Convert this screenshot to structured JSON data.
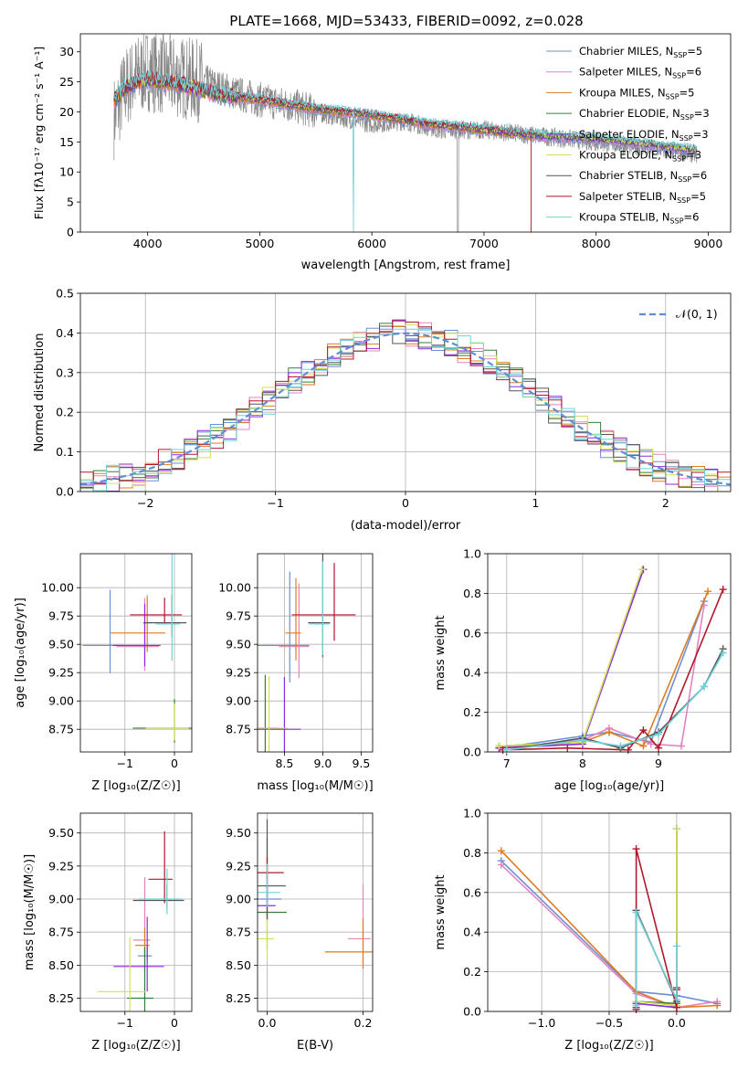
{
  "title": "PLATE=1668, MJD=53433, FIBERID=0092, z=0.028",
  "series_styles": [
    {
      "name": "Chabrier MILES, N_SSP=5",
      "color": "#6a8fd8"
    },
    {
      "name": "Salpeter MILES, N_SSP=6",
      "color": "#e384c0"
    },
    {
      "name": "Kroupa MILES, N_SSP=5",
      "color": "#df7c1e"
    },
    {
      "name": "Chabrier ELODIE, N_SSP=3",
      "color": "#3a7d3a"
    },
    {
      "name": "Salpeter ELODIE, N_SSP=3",
      "color": "#8a2be2"
    },
    {
      "name": "Kroupa ELODIE, N_SSP=3",
      "color": "#d4e157"
    },
    {
      "name": "Chabrier STELIB, N_SSP=6",
      "color": "#555555"
    },
    {
      "name": "Salpeter STELIB, N_SSP=5",
      "color": "#b2182b"
    },
    {
      "name": "Kroupa STELIB, N_SSP=6",
      "color": "#6fd0d8"
    }
  ],
  "chart_data": [
    {
      "id": "spectrum",
      "type": "line",
      "xlabel": "wavelength [Angstrom, rest frame]",
      "ylabel": "Flux [f_λ 10^-17 erg cm^-2 s^-1 A^-1]",
      "xlim": [
        3400,
        9200
      ],
      "ylim": [
        0,
        33
      ],
      "xticks": [
        4000,
        5000,
        6000,
        7000,
        8000,
        9000
      ],
      "yticks": [
        0,
        5,
        10,
        15,
        20,
        25,
        30
      ],
      "grid": false,
      "legend": "top-right",
      "legend_entries": [
        "Chabrier MILES, N_SSP=5",
        "Salpeter MILES, N_SSP=6",
        "Kroupa MILES, N_SSP=5",
        "Chabrier ELODIE, N_SSP=3",
        "Salpeter ELODIE, N_SSP=3",
        "Kroupa ELODIE, N_SSP=3",
        "Chabrier STELIB, N_SSP=6",
        "Salpeter STELIB, N_SSP=5",
        "Kroupa STELIB, N_SSP=6"
      ],
      "data_x": [
        3700,
        3800,
        3900,
        4000,
        4200,
        4500,
        4800,
        5000,
        5300,
        5600,
        6000,
        6300,
        6600,
        7000,
        7500,
        8000,
        8500,
        8900
      ],
      "data_y": [
        19,
        24,
        26,
        27,
        26,
        25,
        23,
        22,
        21,
        19.5,
        18,
        18.5,
        17,
        17,
        16,
        15,
        14,
        13
      ],
      "model_x": [
        3700,
        3800,
        4000,
        4300,
        4600,
        5000,
        5500,
        6000,
        6500,
        7000,
        7500,
        8000,
        8500,
        8900
      ],
      "model_y": [
        22,
        24,
        25.5,
        24.5,
        23,
        22,
        20.5,
        19.5,
        18,
        17,
        16,
        15.5,
        14.5,
        13.5
      ]
    },
    {
      "id": "residuals",
      "type": "line",
      "xlabel": "(data-model)/error",
      "ylabel": "Normed distribution",
      "xlim": [
        -2.5,
        2.5
      ],
      "ylim": [
        0,
        0.5
      ],
      "xticks": [
        -2,
        -1,
        0,
        1,
        2
      ],
      "yticks": [
        0.0,
        0.1,
        0.2,
        0.3,
        0.4,
        0.5
      ],
      "grid": true,
      "legend": "top-right",
      "legend_entries": [
        "𝒩(0, 1)"
      ],
      "reference_curve": "normal(0,1)"
    },
    {
      "id": "age-vs-Z",
      "type": "scatter",
      "xlabel": "Z [log10(Z/Z☉)]",
      "ylabel": "age [log10(age/yr)]",
      "xlim": [
        -1.9,
        0.35
      ],
      "ylim": [
        8.55,
        10.3
      ],
      "xticks": [
        -1,
        0
      ],
      "yticks": [
        8.75,
        9.0,
        9.25,
        9.5,
        9.75,
        10.0
      ],
      "grid": true,
      "points": [
        {
          "series": 0,
          "x": -1.3,
          "y": 9.49
        },
        {
          "series": 1,
          "x": -0.6,
          "y": 9.48
        },
        {
          "series": 2,
          "x": -0.55,
          "y": 9.6
        },
        {
          "series": 3,
          "x": 0.0,
          "y": 8.76
        },
        {
          "series": 4,
          "x": -0.6,
          "y": 9.49
        },
        {
          "series": 5,
          "x": 0.0,
          "y": 8.76
        },
        {
          "series": 6,
          "x": -0.05,
          "y": 9.69
        },
        {
          "series": 7,
          "x": -0.2,
          "y": 9.76
        },
        {
          "series": 8,
          "x": -0.05,
          "y": 9.68
        }
      ]
    },
    {
      "id": "age-vs-mass",
      "type": "scatter",
      "xlabel": "mass [log10(M/M☉)]",
      "ylabel": "",
      "xlim": [
        8.15,
        9.65
      ],
      "ylim": [
        8.55,
        10.3
      ],
      "xticks": [
        8.5,
        9.0,
        9.5
      ],
      "yticks": [
        8.75,
        9.0,
        9.25,
        9.5,
        9.75,
        10.0
      ],
      "grid": true,
      "points": [
        {
          "series": 0,
          "x": 8.57,
          "y": 9.49
        },
        {
          "series": 1,
          "x": 8.69,
          "y": 9.48
        },
        {
          "series": 2,
          "x": 8.65,
          "y": 9.6
        },
        {
          "series": 3,
          "x": 8.25,
          "y": 8.76
        },
        {
          "series": 4,
          "x": 8.5,
          "y": 8.75
        },
        {
          "series": 5,
          "x": 8.3,
          "y": 8.76
        },
        {
          "series": 6,
          "x": 9.0,
          "y": 9.69
        },
        {
          "series": 7,
          "x": 9.15,
          "y": 9.76
        },
        {
          "series": 8,
          "x": 9.0,
          "y": 9.68
        }
      ]
    },
    {
      "id": "weight-vs-age",
      "type": "line",
      "xlabel": "age [log10(age/yr)]",
      "ylabel": "mass weight",
      "xlim": [
        6.75,
        9.95
      ],
      "ylim": [
        0,
        1.0
      ],
      "xticks": [
        7,
        8,
        9
      ],
      "yticks": [
        0.0,
        0.2,
        0.4,
        0.6,
        0.8,
        1.0
      ],
      "grid": true,
      "series": [
        {
          "x": [
            6.9,
            8.0,
            8.35,
            8.9,
            9.6
          ],
          "y": [
            0.02,
            0.08,
            0.1,
            0.05,
            0.76
          ]
        },
        {
          "x": [
            6.9,
            8.0,
            8.35,
            8.9,
            9.3,
            9.6
          ],
          "y": [
            0.02,
            0.06,
            0.12,
            0.04,
            0.03,
            0.74
          ]
        },
        {
          "x": [
            6.9,
            8.0,
            8.35,
            8.8,
            9.65
          ],
          "y": [
            0.02,
            0.05,
            0.1,
            0.03,
            0.81
          ]
        },
        {
          "x": [
            6.9,
            8.0,
            8.8
          ],
          "y": [
            0.03,
            0.05,
            0.92
          ]
        },
        {
          "x": [
            6.9,
            8.0,
            8.8
          ],
          "y": [
            0.02,
            0.04,
            0.92
          ]
        },
        {
          "x": [
            6.9,
            8.0,
            8.78
          ],
          "y": [
            0.03,
            0.05,
            0.92
          ]
        },
        {
          "x": [
            7.0,
            8.0,
            8.5,
            9.0,
            9.6,
            9.85
          ],
          "y": [
            0.01,
            0.07,
            0.02,
            0.1,
            0.33,
            0.52
          ]
        },
        {
          "x": [
            6.95,
            7.8,
            8.6,
            8.8,
            9.0,
            9.85
          ],
          "y": [
            0.01,
            0.02,
            0.01,
            0.11,
            0.02,
            0.82
          ]
        },
        {
          "x": [
            7.0,
            8.0,
            8.5,
            9.0,
            9.6,
            9.85
          ],
          "y": [
            0.01,
            0.06,
            0.03,
            0.09,
            0.33,
            0.5
          ]
        }
      ]
    },
    {
      "id": "mass-vs-Z",
      "type": "scatter",
      "xlabel": "Z [log10(Z/Z☉)]",
      "ylabel": "mass [log10(M/M☉)]",
      "xlim": [
        -1.9,
        0.35
      ],
      "ylim": [
        8.15,
        9.65
      ],
      "xticks": [
        -1,
        0
      ],
      "yticks": [
        8.25,
        8.5,
        8.75,
        9.0,
        9.25,
        9.5
      ],
      "grid": true,
      "points": [
        {
          "series": 0,
          "x": -0.55,
          "y": 8.57
        },
        {
          "series": 1,
          "x": -0.6,
          "y": 8.69
        },
        {
          "series": 2,
          "x": -0.6,
          "y": 8.65
        },
        {
          "series": 3,
          "x": -0.6,
          "y": 8.25
        },
        {
          "series": 4,
          "x": -0.55,
          "y": 8.49
        },
        {
          "series": 5,
          "x": -0.9,
          "y": 8.3
        },
        {
          "series": 6,
          "x": -0.15,
          "y": 8.99
        },
        {
          "series": 7,
          "x": -0.2,
          "y": 9.15
        },
        {
          "series": 8,
          "x": -0.15,
          "y": 9.0
        }
      ]
    },
    {
      "id": "mass-vs-EBV",
      "type": "scatter",
      "xlabel": "E(B-V)",
      "ylabel": "",
      "xlim": [
        -0.02,
        0.22
      ],
      "ylim": [
        8.15,
        9.65
      ],
      "xticks": [
        0.0,
        0.2
      ],
      "yticks": [
        8.25,
        8.5,
        8.75,
        9.0,
        9.25,
        9.5
      ],
      "grid": true,
      "points": [
        {
          "series": 0,
          "x": 0.0,
          "y": 9.0
        },
        {
          "series": 1,
          "x": 0.2,
          "y": 8.7
        },
        {
          "series": 2,
          "x": 0.2,
          "y": 8.6
        },
        {
          "series": 3,
          "x": 0.0,
          "y": 8.9
        },
        {
          "series": 4,
          "x": 0.0,
          "y": 8.95
        },
        {
          "series": 5,
          "x": 0.0,
          "y": 8.7
        },
        {
          "series": 6,
          "x": 0.0,
          "y": 9.1
        },
        {
          "series": 7,
          "x": 0.0,
          "y": 9.2
        },
        {
          "series": 8,
          "x": 0.0,
          "y": 9.05
        }
      ]
    },
    {
      "id": "weight-vs-Z",
      "type": "line",
      "xlabel": "Z [log10(Z/Z☉)]",
      "ylabel": "mass weight",
      "xlim": [
        -1.4,
        0.4
      ],
      "ylim": [
        0,
        1.0
      ],
      "xticks": [
        -1.0,
        -0.5,
        0.0
      ],
      "yticks": [
        0.0,
        0.2,
        0.4,
        0.6,
        0.8,
        1.0
      ],
      "grid": true,
      "series": [
        {
          "x": [
            -1.3,
            -0.3,
            0.0,
            0.3
          ],
          "y": [
            0.76,
            0.1,
            0.08,
            0.04
          ]
        },
        {
          "x": [
            -1.3,
            -0.3,
            0.0,
            0.3
          ],
          "y": [
            0.74,
            0.09,
            0.02,
            0.05
          ]
        },
        {
          "x": [
            -1.3,
            -0.3,
            0.0,
            0.3
          ],
          "y": [
            0.81,
            0.1,
            0.02,
            0.03
          ]
        },
        {
          "x": [
            -0.3,
            0.0,
            0.0
          ],
          "y": [
            0.05,
            0.04,
            0.92
          ]
        },
        {
          "x": [
            -0.3,
            0.0,
            0.0
          ],
          "y": [
            0.04,
            0.02,
            0.92
          ]
        },
        {
          "x": [
            -0.3,
            0.0,
            0.0
          ],
          "y": [
            0.05,
            0.03,
            0.92
          ]
        },
        {
          "x": [
            -0.3,
            -0.3,
            0.0,
            0.0
          ],
          "y": [
            0.02,
            0.51,
            0.05,
            0.12
          ]
        },
        {
          "x": [
            -0.3,
            -0.3,
            0.0,
            0.0
          ],
          "y": [
            0.01,
            0.82,
            0.02,
            0.11
          ]
        },
        {
          "x": [
            -0.3,
            -0.3,
            0.0,
            0.0
          ],
          "y": [
            0.03,
            0.5,
            0.06,
            0.33
          ]
        }
      ]
    }
  ]
}
